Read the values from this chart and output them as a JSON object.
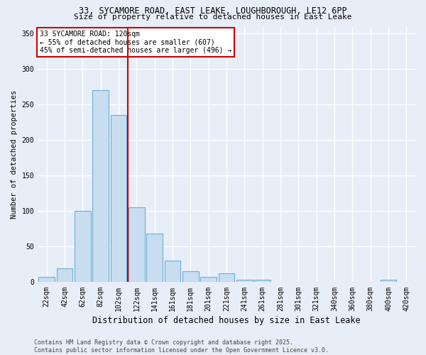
{
  "title": "33, SYCAMORE ROAD, EAST LEAKE, LOUGHBOROUGH, LE12 6PP",
  "subtitle": "Size of property relative to detached houses in East Leake",
  "xlabel": "Distribution of detached houses by size in East Leake",
  "ylabel": "Number of detached properties",
  "categories": [
    "22sqm",
    "42sqm",
    "62sqm",
    "82sqm",
    "102sqm",
    "122sqm",
    "141sqm",
    "161sqm",
    "181sqm",
    "201sqm",
    "221sqm",
    "241sqm",
    "261sqm",
    "281sqm",
    "301sqm",
    "321sqm",
    "340sqm",
    "360sqm",
    "380sqm",
    "400sqm",
    "420sqm"
  ],
  "values": [
    7,
    19,
    100,
    270,
    235,
    105,
    68,
    30,
    15,
    7,
    12,
    3,
    3,
    0,
    0,
    0,
    0,
    0,
    0,
    3,
    0
  ],
  "bar_color": "#c9ddf0",
  "bar_edge_color": "#6baed6",
  "red_line_x": 4.5,
  "ylim": [
    0,
    360
  ],
  "yticks": [
    0,
    50,
    100,
    150,
    200,
    250,
    300,
    350
  ],
  "annotation_text": "33 SYCAMORE ROAD: 120sqm\n← 55% of detached houses are smaller (607)\n45% of semi-detached houses are larger (496) →",
  "annotation_box_color": "#ffffff",
  "annotation_box_edge": "#cc0000",
  "footer": "Contains HM Land Registry data © Crown copyright and database right 2025.\nContains public sector information licensed under the Open Government Licence v3.0.",
  "background_color": "#e8eef8",
  "grid_color": "#ffffff",
  "title_fontsize": 8.5,
  "subtitle_fontsize": 8,
  "xlabel_fontsize": 8.5,
  "ylabel_fontsize": 7.5,
  "tick_fontsize": 7,
  "annotation_fontsize": 7,
  "footer_fontsize": 6
}
